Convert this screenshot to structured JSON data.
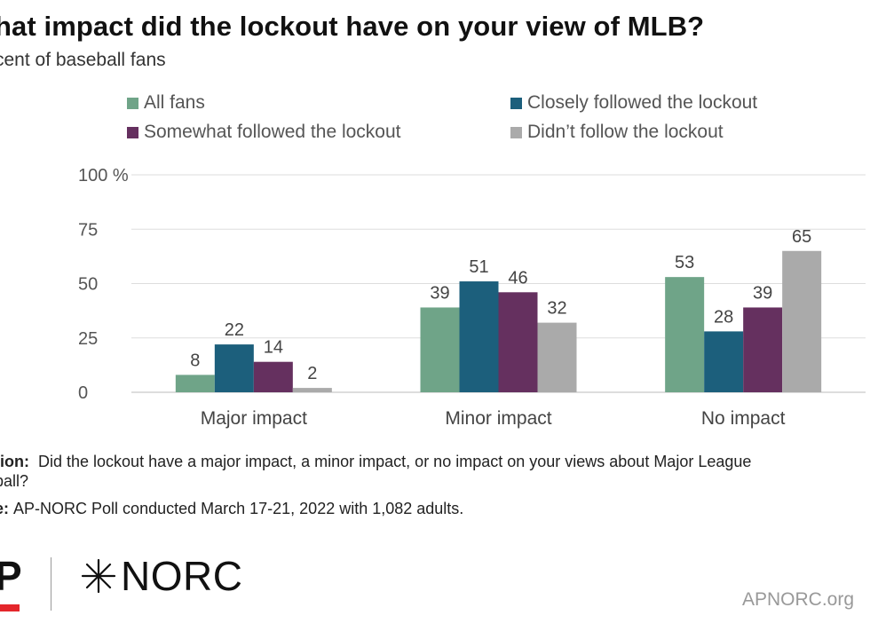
{
  "title": "hat impact did the lockout have on your view of MLB?",
  "subtitle": "cent of baseball fans",
  "colors": {
    "all_fans": "#6fa488",
    "closely": "#1c5f7c",
    "somewhat": "#65305f",
    "didnt": "#aaaaaa",
    "grid": "#dddddd",
    "axis_text": "#555555"
  },
  "chart_data": {
    "type": "bar",
    "categories": [
      "Major impact",
      "Minor impact",
      "No impact"
    ],
    "series": [
      {
        "name": "All fans",
        "values": [
          8,
          39,
          53
        ]
      },
      {
        "name": "Closely followed the lockout",
        "values": [
          22,
          51,
          28
        ]
      },
      {
        "name": "Somewhat followed the lockout",
        "values": [
          14,
          46,
          39
        ]
      },
      {
        "name": "Didn’t follow the lockout",
        "values": [
          2,
          32,
          65
        ]
      }
    ],
    "ylim": [
      0,
      100
    ],
    "yticks": [
      "0",
      "25",
      "50",
      "75",
      "100 %"
    ],
    "ytick_values": [
      0,
      25,
      50,
      75,
      100
    ],
    "data_labels": true,
    "grid": true,
    "legend_position": "top"
  },
  "notes": {
    "question_label": "tion:",
    "question_text": "Did the lockout have a major impact, a minor impact, or no impact on your views about Major League",
    "question_text_line2": "ball?",
    "source_label": "e:",
    "source_text": "AP-NORC Poll conducted March 17-21, 2022 with 1,082 adults."
  },
  "footer": {
    "logo_ap": "P",
    "logo_norc": "NORC",
    "site": "APNORC.org"
  }
}
